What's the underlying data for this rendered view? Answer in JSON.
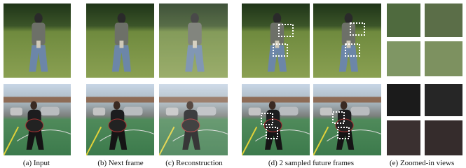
{
  "captions": [
    "(a) Input",
    "(b) Next frame",
    "(c) Reconstruction",
    "(d) 2 sampled future frames",
    "(e) Zoomed-in views"
  ]
}
